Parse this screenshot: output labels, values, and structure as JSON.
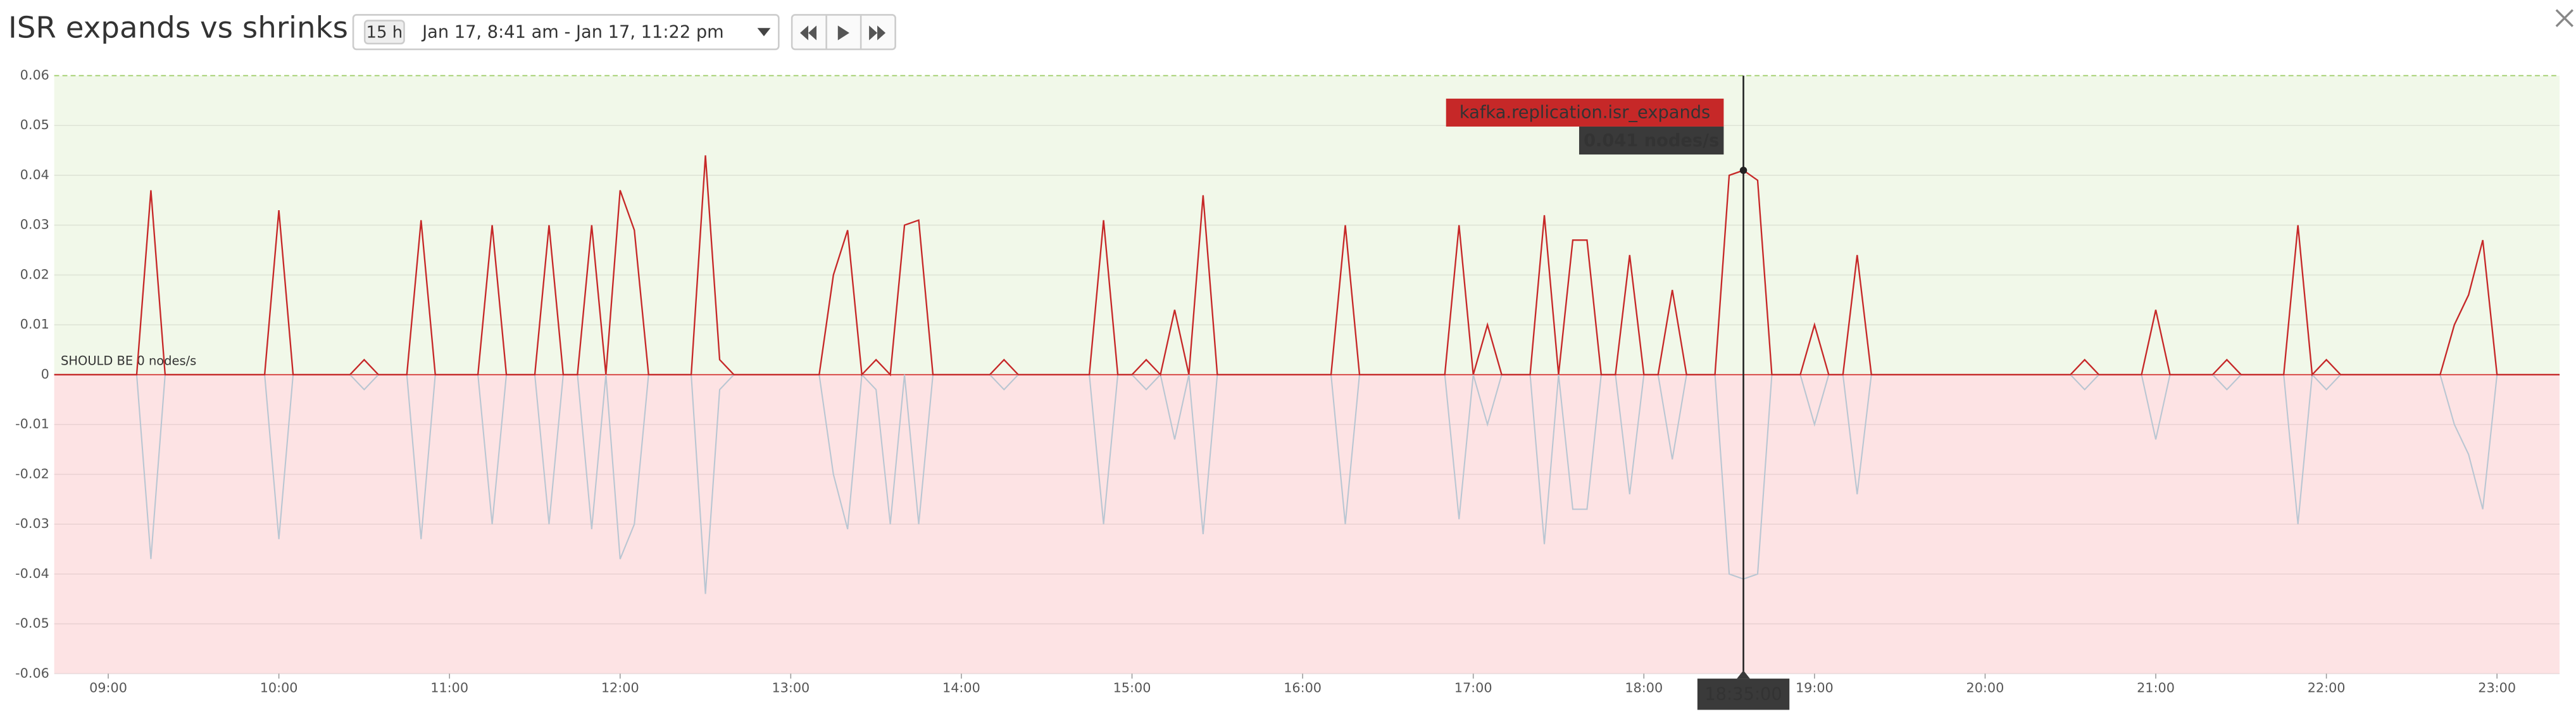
{
  "header": {
    "title": "ISR expands vs shrinks",
    "range_badge": "15 h",
    "range_text": "Jan 17, 8:41 am -  Jan 17, 11:22 pm"
  },
  "chart_data": {
    "type": "line",
    "x": [
      "08:41",
      "09:10",
      "09:15",
      "09:20",
      "09:55",
      "10:00",
      "10:05",
      "10:25",
      "10:30",
      "10:35",
      "10:45",
      "10:50",
      "10:55",
      "11:10",
      "11:15",
      "11:20",
      "11:30",
      "11:35",
      "11:40",
      "11:45",
      "11:50",
      "11:55",
      "12:00",
      "12:05",
      "12:10",
      "12:25",
      "12:30",
      "12:35",
      "12:40",
      "13:10",
      "13:15",
      "13:20",
      "13:25",
      "13:30",
      "13:35",
      "13:40",
      "13:45",
      "13:50",
      "14:10",
      "14:15",
      "14:20",
      "14:45",
      "14:50",
      "14:55",
      "15:00",
      "15:05",
      "15:10",
      "15:15",
      "15:20",
      "15:25",
      "15:30",
      "16:10",
      "16:15",
      "16:20",
      "16:50",
      "16:55",
      "17:00",
      "17:05",
      "17:10",
      "17:20",
      "17:25",
      "17:30",
      "17:35",
      "17:40",
      "17:45",
      "17:50",
      "17:55",
      "18:00",
      "18:05",
      "18:10",
      "18:15",
      "18:25",
      "18:30",
      "18:35",
      "18:40",
      "18:45",
      "18:55",
      "19:00",
      "19:05",
      "19:10",
      "19:15",
      "19:20",
      "20:30",
      "20:35",
      "20:40",
      "20:55",
      "21:00",
      "21:05",
      "21:20",
      "21:25",
      "21:30",
      "21:45",
      "21:50",
      "21:55",
      "22:00",
      "22:05",
      "22:40",
      "22:45",
      "22:50",
      "22:55",
      "23:00",
      "23:22"
    ],
    "series": [
      {
        "name": "kafka.replication.isr_expands",
        "color": "#c62828",
        "values": [
          0,
          0,
          0.037,
          0,
          0,
          0.033,
          0,
          0,
          0.003,
          0,
          0,
          0.031,
          0,
          0,
          0.03,
          0,
          0,
          0.03,
          0,
          0,
          0.03,
          0,
          0.037,
          0.029,
          0,
          0,
          0.044,
          0.003,
          0,
          0,
          0.02,
          0.029,
          0,
          0.003,
          0,
          0.03,
          0.031,
          0,
          0,
          0.003,
          0,
          0,
          0.031,
          0,
          0,
          0.003,
          0,
          0.013,
          0,
          0.036,
          0,
          0,
          0.03,
          0,
          0,
          0.03,
          0,
          0.01,
          0,
          0,
          0.032,
          0,
          0.027,
          0.027,
          0,
          0,
          0.024,
          0,
          0,
          0.017,
          0,
          0,
          0.04,
          0.041,
          0.039,
          0,
          0,
          0.01,
          0,
          0,
          0.024,
          0,
          0,
          0.003,
          0,
          0,
          0.013,
          0,
          0,
          0.003,
          0,
          0,
          0.03,
          0,
          0.003,
          0,
          0,
          0.01,
          0.016,
          0.027,
          0,
          0
        ]
      },
      {
        "color": "#b9c6d2",
        "values": [
          0,
          0,
          -0.037,
          0,
          0,
          -0.033,
          0,
          0,
          -0.003,
          0,
          0,
          -0.033,
          0,
          0,
          -0.03,
          0,
          0,
          -0.03,
          0,
          0,
          -0.031,
          0,
          -0.037,
          -0.03,
          0,
          0,
          -0.044,
          -0.003,
          0,
          0,
          -0.02,
          -0.031,
          0,
          -0.003,
          -0.03,
          0,
          -0.03,
          0,
          0,
          -0.003,
          0,
          0,
          -0.03,
          0,
          0,
          -0.003,
          0,
          -0.013,
          0,
          -0.032,
          0,
          0,
          -0.03,
          0,
          0,
          -0.029,
          0,
          -0.01,
          0,
          0,
          -0.034,
          0,
          -0.027,
          -0.027,
          0,
          0,
          -0.024,
          0,
          0,
          -0.017,
          0,
          0,
          -0.04,
          -0.041,
          -0.04,
          0,
          0,
          -0.01,
          0,
          0,
          -0.024,
          0,
          0,
          -0.003,
          0,
          0,
          -0.013,
          0,
          0,
          -0.003,
          0,
          0,
          -0.03,
          0,
          -0.003,
          0,
          0,
          -0.01,
          -0.016,
          -0.027,
          0,
          0
        ]
      }
    ],
    "xlim": [
      "08:41",
      "23:22"
    ],
    "xticks": [
      "09:00",
      "10:00",
      "11:00",
      "12:00",
      "13:00",
      "14:00",
      "15:00",
      "16:00",
      "17:00",
      "18:00",
      "19:00",
      "20:00",
      "21:00",
      "22:00",
      "23:00"
    ],
    "ylim": [
      -0.06,
      0.06
    ],
    "yticks": [
      0.06,
      0.05,
      0.04,
      0.03,
      0.02,
      0.01,
      0,
      -0.01,
      -0.02,
      -0.03,
      -0.04,
      -0.05,
      -0.06
    ],
    "grid": true,
    "bands": {
      "above_color": "#f1f8e9",
      "below_color": "#fde3e4"
    },
    "marker": {
      "value": 0,
      "label": "SHOULD BE 0 nodes/s"
    },
    "crosshair": {
      "time": "18:35:00",
      "value_label": "0.041 nodes/s"
    }
  }
}
